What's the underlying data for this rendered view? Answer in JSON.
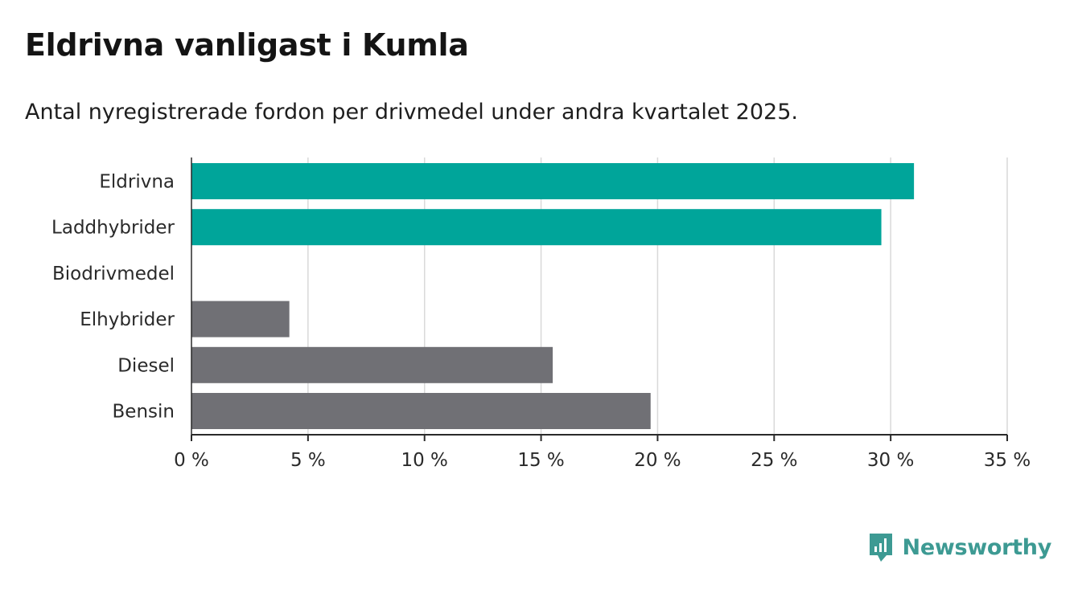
{
  "header": {
    "title": "Eldrivna vanligast i Kumla",
    "subtitle": "Antal nyregistrerade fordon per drivmedel under andra kvartalet 2025."
  },
  "brand": {
    "name": "Newsworthy",
    "logo_icon": "bar-chart-speech-bubble-icon",
    "color": "#3d9a93"
  },
  "chart_data": {
    "type": "bar",
    "orientation": "horizontal",
    "categories": [
      "Eldrivna",
      "Laddhybrider",
      "Biodrivmedel",
      "Elhybrider",
      "Diesel",
      "Bensin"
    ],
    "values": [
      31.0,
      29.6,
      0,
      4.2,
      15.5,
      19.7
    ],
    "colors": [
      "#00a59a",
      "#00a59a",
      "#707075",
      "#707075",
      "#707075",
      "#707075"
    ],
    "unit": "%",
    "xlim": [
      0,
      35
    ],
    "xticks": [
      0,
      5,
      10,
      15,
      20,
      25,
      30,
      35
    ],
    "xtick_labels": [
      "0 %",
      "5 %",
      "10 %",
      "15 %",
      "20 %",
      "25 %",
      "30 %",
      "35 %"
    ],
    "grid": "vertical",
    "xlabel": "",
    "ylabel": ""
  }
}
